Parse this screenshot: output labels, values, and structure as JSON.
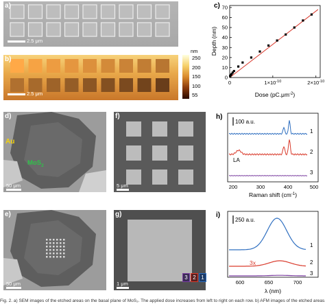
{
  "panels": {
    "a": {
      "label": "a)",
      "scale": "2.5 μm"
    },
    "b": {
      "label": "b)",
      "scale": "2.5 μm",
      "colorbar": {
        "unit": "nm",
        "ticks": [
          "250",
          "200",
          "150",
          "100",
          "55"
        ]
      }
    },
    "c": {
      "label": "c)"
    },
    "d": {
      "label": "d)",
      "au": "Au",
      "mos2": "MoS",
      "mos2_sub": "2",
      "scale": "50 μm"
    },
    "e": {
      "label": "e)",
      "scale": "50 μm"
    },
    "f": {
      "label": "f)",
      "scale": "5 μm"
    },
    "g": {
      "label": "g)",
      "scale": "1 μm",
      "markers": [
        "3",
        "2",
        "1"
      ]
    },
    "h": {
      "label": "h)",
      "bar": "100 a.u.",
      "la": "LA",
      "xlabel": "Raman shift (cm",
      "xlabel_sup": "-1",
      "xlabel_end": ")",
      "ticks": [
        "200",
        "300",
        "400",
        "500"
      ],
      "trace_labels": [
        "1",
        "2",
        "3"
      ]
    },
    "i": {
      "label": "i)",
      "bar": "250 a.u.",
      "mult": "3x",
      "xlabel": "λ (nm)",
      "ticks": [
        "600",
        "650",
        "700"
      ],
      "trace_labels": [
        "1",
        "2",
        "3"
      ]
    }
  },
  "colors": {
    "trace1": "#2f6fc0",
    "trace2": "#d93a2b",
    "trace3": "#7b3fa0",
    "fit": "#d9382c"
  },
  "chart_data": {
    "type": "scatter",
    "xlabel": "Dose (pC.μm",
    "xlabel_sup": "-2",
    "xlabel_end": ")",
    "ylabel": "Depth (nm)",
    "yticks": [
      "0",
      "10",
      "20",
      "30",
      "40",
      "50",
      "60",
      "70"
    ],
    "xticks": [
      "0",
      "1×10",
      "2×10"
    ],
    "xtick_sup": "-10",
    "xlim": [
      0,
      2.1e-10
    ],
    "ylim": [
      0,
      72
    ],
    "series": [
      {
        "x": [
          1e-12,
          2.5e-12,
          4.5e-12,
          7e-12,
          1e-11,
          2e-11,
          3e-11,
          5e-11,
          7e-11,
          9e-11,
          1.1e-10,
          1.3e-10,
          1.5e-10,
          1.7e-10,
          1.9e-10
        ],
        "y": [
          1.5,
          2.5,
          3.5,
          5.0,
          6.5,
          11,
          15,
          20,
          26,
          32,
          37,
          43,
          50,
          57,
          63
        ]
      }
    ],
    "fit": {
      "x": [
        0,
        2.05e-10
      ],
      "y": [
        0,
        68
      ]
    }
  },
  "caption": "Fig. 2. a) SEM images of the etched areas on the basal plane of MoS₂. The applied dose increases from left to right on each row. b) AFM images of the etched areas. c) Graph"
}
